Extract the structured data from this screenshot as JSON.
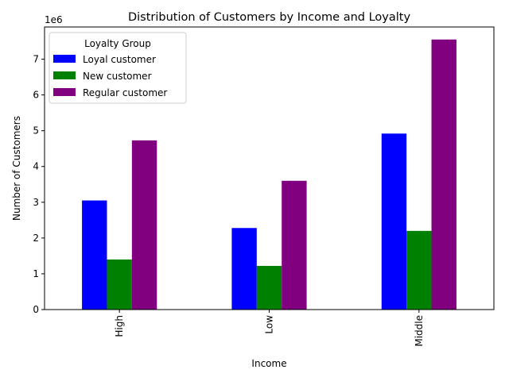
{
  "chart_data": {
    "type": "bar",
    "title": "Distribution of Customers by Income and Loyalty",
    "xlabel": "Income",
    "ylabel": "Number of Customers",
    "y_offset_label": "1e6",
    "categories": [
      "High",
      "Low",
      "Middle"
    ],
    "series": [
      {
        "name": "Loyal customer",
        "color": "#0000ff",
        "values": [
          3050000,
          2280000,
          4920000
        ]
      },
      {
        "name": "New customer",
        "color": "#008000",
        "values": [
          1400000,
          1220000,
          2200000
        ]
      },
      {
        "name": "Regular customer",
        "color": "#800080",
        "values": [
          4730000,
          3600000,
          7550000
        ]
      }
    ],
    "ylim": [
      0,
      7900000
    ],
    "yticks": [
      0,
      1,
      2,
      3,
      4,
      5,
      6,
      7
    ],
    "ytick_multiplier": 1000000,
    "legend": {
      "title": "Loyalty Group",
      "position": "top-left"
    },
    "grid": false
  }
}
